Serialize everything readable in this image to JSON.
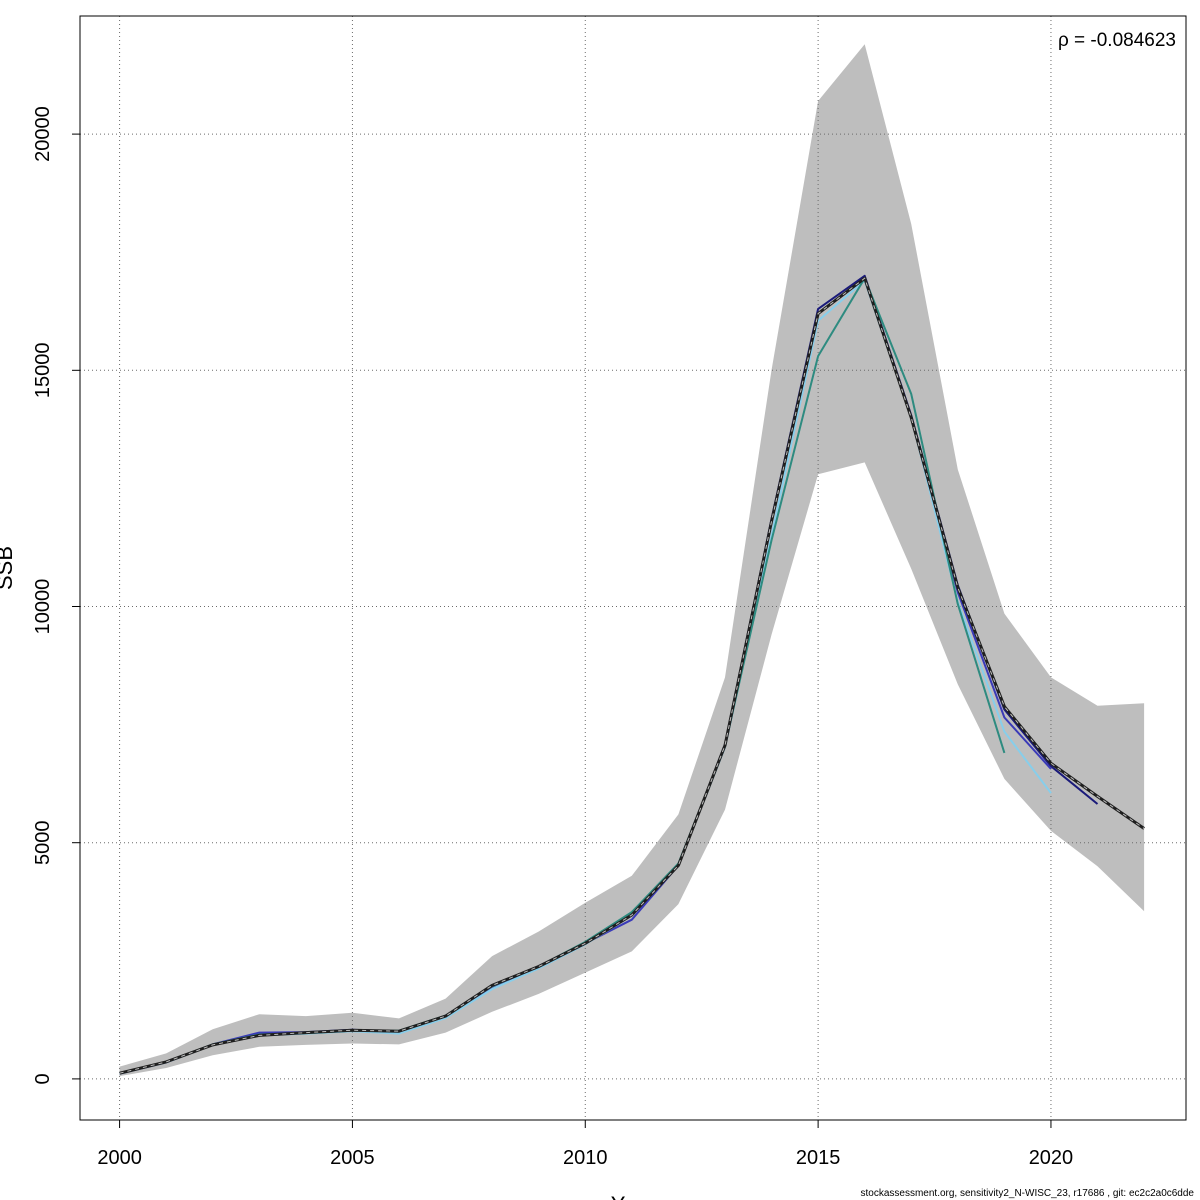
{
  "chart_data": {
    "type": "line",
    "title": "",
    "xlabel": "Year",
    "ylabel": "SSB",
    "xlim": [
      1999.15,
      2022.9
    ],
    "ylim": [
      -870,
      22500
    ],
    "x_ticks": [
      2000,
      2005,
      2010,
      2015,
      2020
    ],
    "y_ticks": [
      0,
      5000,
      10000,
      15000,
      20000
    ],
    "grid": true,
    "annotation": "ρ = -0.084623",
    "footer": "stockassessment.org, sensitivity2_N-WISC_23, r17686 , git: ec2c2a0c6dde",
    "colors": {
      "band": "#bebebe",
      "base": "#1f1f1f",
      "base_dash": "#bebebe",
      "peel_1": "#1a1a7a",
      "peel_2": "#3a3ab8",
      "peel_3": "#87ceeb",
      "peel_4": "#2e8b80"
    },
    "confidence_band": {
      "x": [
        2000,
        2001,
        2002,
        2003,
        2004,
        2005,
        2006,
        2007,
        2008,
        2009,
        2010,
        2011,
        2012,
        2013,
        2014,
        2015,
        2016,
        2017,
        2018,
        2019,
        2020,
        2021,
        2022
      ],
      "lower": [
        60,
        230,
        500,
        680,
        720,
        750,
        730,
        980,
        1420,
        1800,
        2250,
        2700,
        3700,
        5700,
        9400,
        12800,
        13050,
        10800,
        8350,
        6350,
        5250,
        4500,
        3550
      ],
      "upper": [
        260,
        540,
        1050,
        1370,
        1330,
        1400,
        1280,
        1700,
        2600,
        3120,
        3730,
        4300,
        5600,
        8500,
        15000,
        20700,
        21900,
        18100,
        12900,
        9850,
        8500,
        7900,
        7950
      ]
    },
    "series": [
      {
        "key": "base",
        "x": [
          2000,
          2001,
          2002,
          2003,
          2004,
          2005,
          2006,
          2007,
          2008,
          2009,
          2010,
          2011,
          2012,
          2013,
          2014,
          2015,
          2016,
          2017,
          2018,
          2019,
          2020,
          2021,
          2022
        ],
        "values": [
          120,
          360,
          720,
          920,
          980,
          1030,
          1010,
          1330,
          1980,
          2380,
          2870,
          3470,
          4520,
          7060,
          11800,
          16200,
          16950,
          14000,
          10400,
          7880,
          6680,
          5980,
          5300
        ]
      },
      {
        "key": "peel_1",
        "x": [
          2000,
          2001,
          2002,
          2003,
          2004,
          2005,
          2006,
          2007,
          2008,
          2009,
          2010,
          2011,
          2012,
          2013,
          2014,
          2015,
          2016,
          2017,
          2018,
          2019,
          2020,
          2021
        ],
        "values": [
          120,
          360,
          720,
          920,
          980,
          1030,
          1010,
          1330,
          1980,
          2380,
          2870,
          3470,
          4520,
          7080,
          11850,
          16300,
          17000,
          14050,
          10450,
          7820,
          6620,
          5820
        ]
      },
      {
        "key": "peel_2",
        "x": [
          2000,
          2001,
          2002,
          2003,
          2004,
          2005,
          2006,
          2007,
          2008,
          2009,
          2010,
          2011,
          2012,
          2013,
          2014,
          2015,
          2016,
          2017,
          2018,
          2019,
          2020
        ],
        "values": [
          110,
          350,
          730,
          980,
          990,
          1040,
          1000,
          1310,
          1950,
          2370,
          2870,
          3370,
          4520,
          7070,
          11800,
          16200,
          16960,
          14000,
          10300,
          7650,
          6560
        ]
      },
      {
        "key": "peel_3",
        "x": [
          2000,
          2001,
          2002,
          2003,
          2004,
          2005,
          2006,
          2007,
          2008,
          2009,
          2010,
          2011,
          2012,
          2013,
          2014,
          2015,
          2016,
          2017,
          2018,
          2019,
          2020
        ],
        "values": [
          110,
          350,
          720,
          920,
          960,
          1010,
          960,
          1290,
          1900,
          2340,
          2850,
          3460,
          4520,
          7020,
          11500,
          16050,
          16900,
          14000,
          10100,
          7350,
          6050
        ]
      },
      {
        "key": "peel_4",
        "x": [
          2000,
          2001,
          2002,
          2003,
          2004,
          2005,
          2006,
          2007,
          2008,
          2009,
          2010,
          2011,
          2012,
          2013,
          2014,
          2015,
          2016,
          2017,
          2018,
          2019
        ],
        "values": [
          120,
          360,
          730,
          940,
          970,
          1020,
          1020,
          1340,
          1960,
          2380,
          2900,
          3530,
          4560,
          7050,
          11400,
          15300,
          16950,
          14500,
          10050,
          6900
        ]
      }
    ]
  }
}
